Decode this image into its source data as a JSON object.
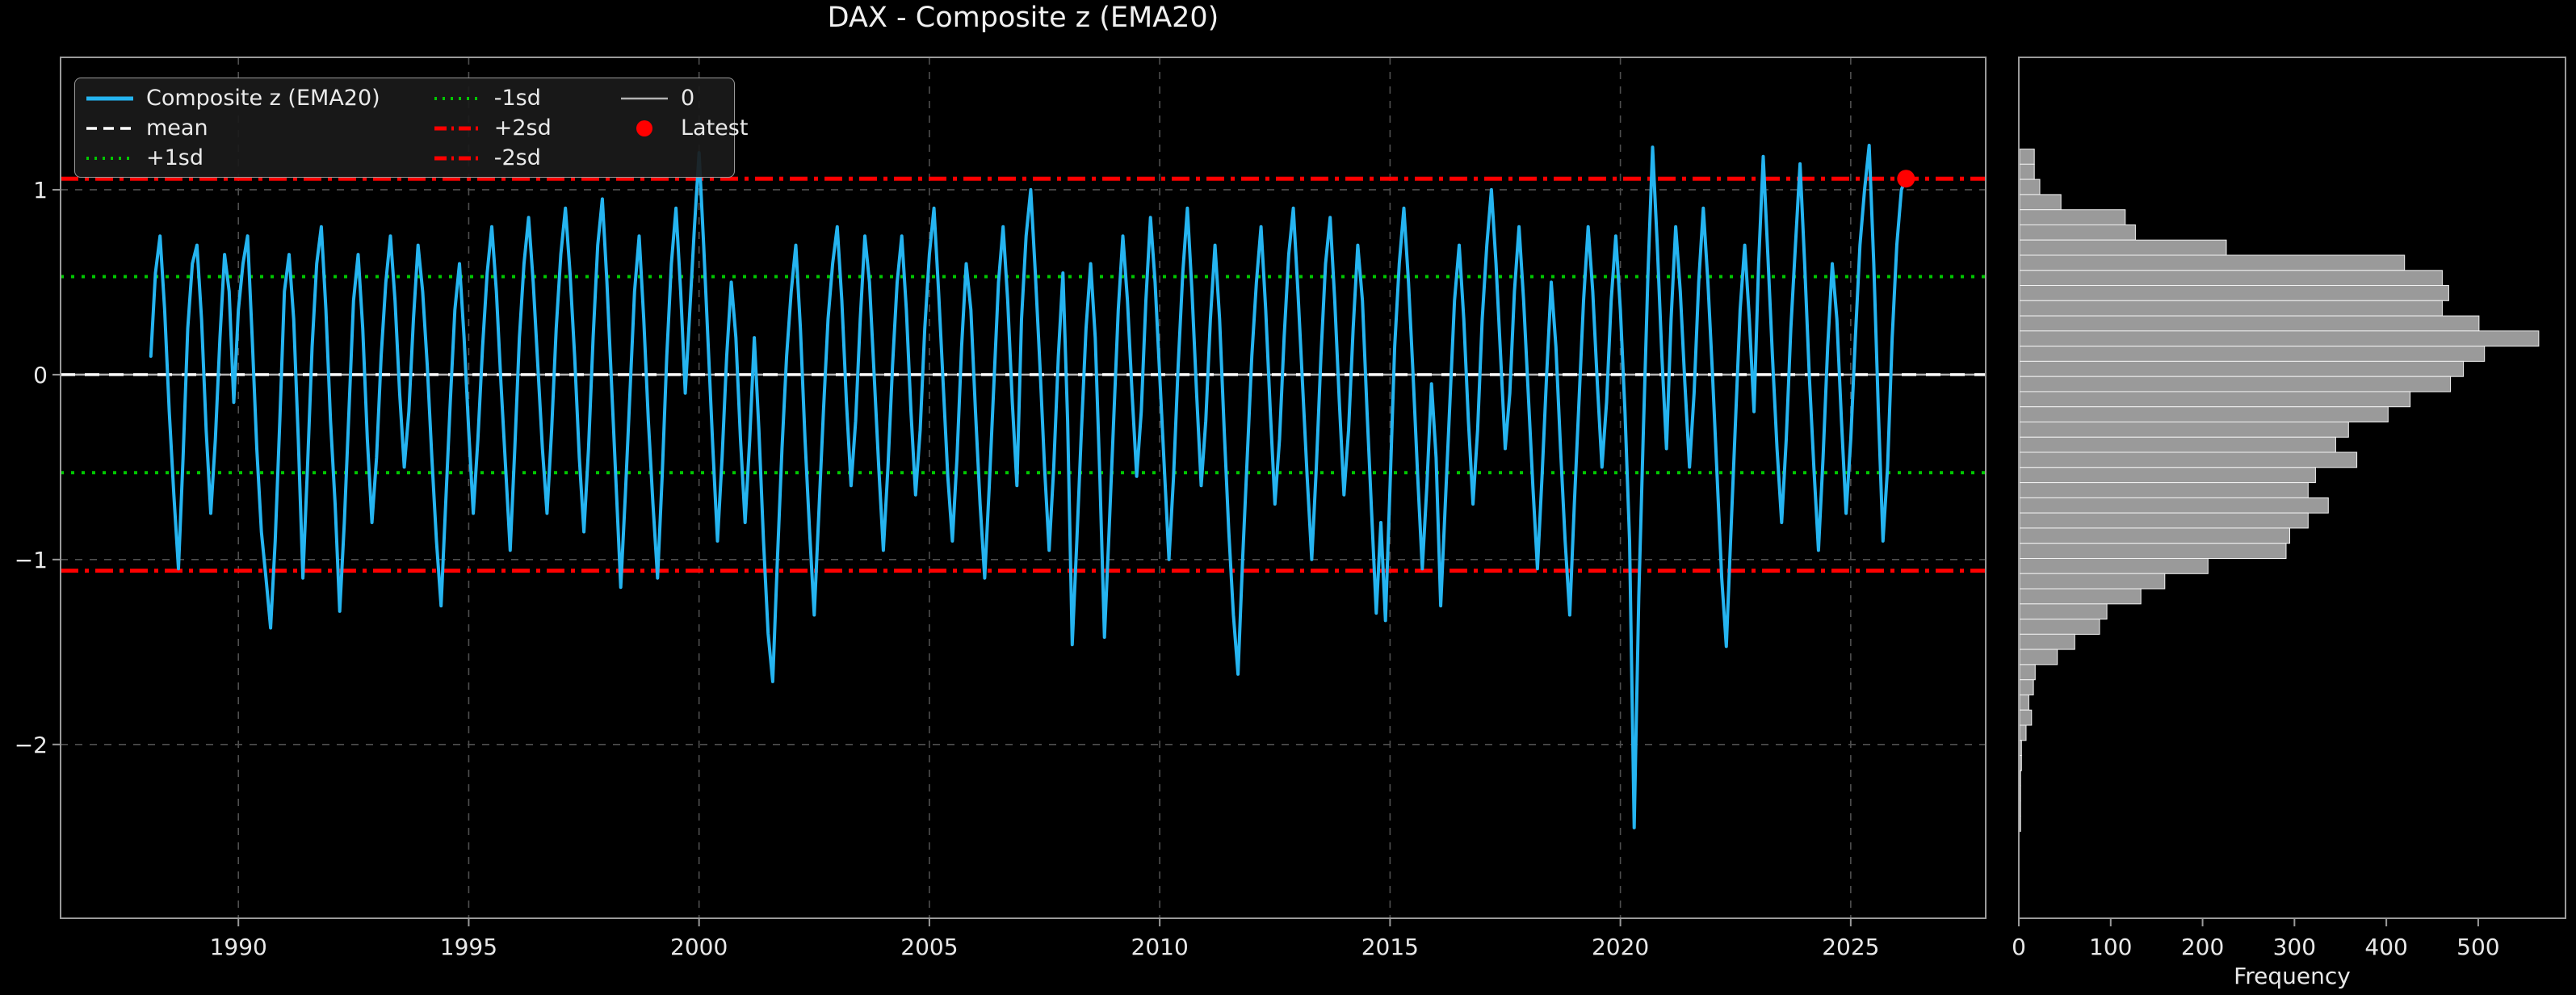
{
  "title": "DAX - Composite z (EMA20)",
  "colors": {
    "background": "#000000",
    "frame": "#9a9a9a",
    "grid": "#4f4f4f",
    "tick_label": "#e8e8e8",
    "series": "#25b4f0",
    "mean_line": "#ffffff",
    "sd1_line": "#00c800",
    "sd2_line": "#ff0000",
    "zero_line": "#b3b3b3",
    "latest_marker": "#ff0000",
    "hist_bar_fill": "#9a9a9a",
    "hist_bar_edge": "#f2f2f2",
    "legend_bg": "#1a1a1a"
  },
  "legend": {
    "columns": [
      [
        {
          "label": "Composite z (EMA20)",
          "color": "#25b4f0",
          "dash": "solid",
          "lw": 5
        },
        {
          "label": "mean",
          "color": "#ffffff",
          "dash": "dashed",
          "lw": 3.5
        },
        {
          "label": "+1sd",
          "color": "#00c800",
          "dash": "dotted",
          "lw": 4
        }
      ],
      [
        {
          "label": "-1sd",
          "color": "#00c800",
          "dash": "dotted",
          "lw": 4
        },
        {
          "label": "+2sd",
          "color": "#ff0000",
          "dash": "dashdot",
          "lw": 5
        },
        {
          "label": "-2sd",
          "color": "#ff0000",
          "dash": "dashdot",
          "lw": 5
        }
      ],
      [
        {
          "label": "0",
          "color": "#b3b3b3",
          "dash": "solid",
          "lw": 2.5
        },
        {
          "label": "Latest",
          "color": "#ff0000",
          "marker": "circle"
        }
      ]
    ]
  },
  "chart_data": [
    {
      "type": "line",
      "title": "DAX - Composite z (EMA20)",
      "name": "Composite z (EMA20)",
      "xlabel": "",
      "ylabel": "",
      "xlim": [
        1986.14,
        2027.93
      ],
      "ylim": [
        -2.94,
        1.716
      ],
      "x_ticks": [
        1990,
        1995,
        2000,
        2005,
        2010,
        2015,
        2020,
        2025
      ],
      "y_ticks": [
        1,
        0,
        -1,
        -2
      ],
      "y_tick_labels": [
        "1",
        "0",
        "−1",
        "−2"
      ],
      "grid": true,
      "legend_position": "upper left",
      "x_start": 1988.1,
      "x_step": 0.1,
      "values": [
        0.1,
        0.55,
        0.75,
        0.35,
        -0.2,
        -0.65,
        -1.05,
        -0.45,
        0.25,
        0.6,
        0.7,
        0.3,
        -0.3,
        -0.75,
        -0.35,
        0.2,
        0.65,
        0.45,
        -0.15,
        0.35,
        0.6,
        0.75,
        0.2,
        -0.4,
        -0.85,
        -1.1,
        -1.37,
        -0.9,
        -0.25,
        0.45,
        0.65,
        0.3,
        -0.35,
        -1.1,
        -0.5,
        0.15,
        0.6,
        0.8,
        0.35,
        -0.25,
        -0.7,
        -1.28,
        -0.8,
        -0.2,
        0.4,
        0.65,
        0.25,
        -0.35,
        -0.8,
        -0.45,
        0.1,
        0.5,
        0.75,
        0.4,
        -0.1,
        -0.5,
        -0.2,
        0.3,
        0.7,
        0.45,
        0.05,
        -0.45,
        -0.9,
        -1.25,
        -0.7,
        -0.15,
        0.35,
        0.6,
        0.2,
        -0.3,
        -0.75,
        -0.35,
        0.15,
        0.55,
        0.8,
        0.45,
        -0.05,
        -0.5,
        -0.95,
        -0.4,
        0.2,
        0.6,
        0.85,
        0.5,
        0.05,
        -0.4,
        -0.75,
        -0.3,
        0.25,
        0.65,
        0.9,
        0.55,
        0.1,
        -0.45,
        -0.85,
        -0.4,
        0.2,
        0.7,
        0.95,
        0.5,
        -0.05,
        -0.6,
        -1.15,
        -0.65,
        -0.1,
        0.45,
        0.75,
        0.3,
        -0.25,
        -0.7,
        -1.1,
        -0.55,
        0.1,
        0.6,
        0.9,
        0.45,
        -0.1,
        0.35,
        0.8,
        1.2,
        0.7,
        0.15,
        -0.4,
        -0.9,
        -0.45,
        0.1,
        0.5,
        0.2,
        -0.35,
        -0.8,
        -0.35,
        0.2,
        -0.3,
        -0.9,
        -1.4,
        -1.66,
        -1.0,
        -0.4,
        0.1,
        0.45,
        0.7,
        0.25,
        -0.35,
        -0.85,
        -1.3,
        -0.75,
        -0.2,
        0.3,
        0.6,
        0.8,
        0.4,
        -0.15,
        -0.6,
        -0.25,
        0.3,
        0.75,
        0.5,
        0.0,
        -0.5,
        -0.95,
        -0.5,
        0.05,
        0.5,
        0.75,
        0.35,
        -0.2,
        -0.65,
        -0.3,
        0.25,
        0.65,
        0.9,
        0.45,
        -0.05,
        -0.55,
        -0.9,
        -0.45,
        0.15,
        0.6,
        0.35,
        -0.2,
        -0.7,
        -1.1,
        -0.6,
        -0.05,
        0.5,
        0.8,
        0.4,
        -0.15,
        -0.6,
        0.3,
        0.75,
        1.0,
        0.55,
        0.05,
        -0.5,
        -0.95,
        -0.5,
        0.1,
        0.55,
        -0.25,
        -1.46,
        -0.9,
        -0.3,
        0.25,
        0.6,
        0.2,
        -0.55,
        -1.42,
        -0.85,
        -0.25,
        0.35,
        0.75,
        0.4,
        -0.1,
        -0.55,
        -0.2,
        0.4,
        0.85,
        0.5,
        0.0,
        -0.5,
        -1.0,
        -0.55,
        0.05,
        0.55,
        0.9,
        0.45,
        -0.1,
        -0.6,
        -0.25,
        0.3,
        0.7,
        0.3,
        -0.3,
        -0.85,
        -1.3,
        -1.62,
        -1.0,
        -0.45,
        0.1,
        0.5,
        0.8,
        0.35,
        -0.2,
        -0.7,
        -0.35,
        0.2,
        0.65,
        0.9,
        0.45,
        -0.05,
        -0.55,
        -1.0,
        -0.5,
        0.1,
        0.6,
        0.85,
        0.4,
        -0.15,
        -0.65,
        -0.3,
        0.25,
        0.7,
        0.4,
        -0.2,
        -0.75,
        -1.29,
        -0.8,
        -1.33,
        -0.6,
        0.15,
        0.6,
        0.9,
        0.5,
        0.0,
        -0.55,
        -1.05,
        -0.6,
        -0.05,
        -0.45,
        -1.25,
        -0.7,
        -0.15,
        0.4,
        0.7,
        0.3,
        -0.25,
        -0.7,
        -0.3,
        0.3,
        0.7,
        1.0,
        0.6,
        0.1,
        -0.4,
        -0.1,
        0.45,
        0.8,
        0.4,
        -0.1,
        -0.6,
        -1.05,
        -0.55,
        0.0,
        0.5,
        0.15,
        -0.4,
        -0.9,
        -1.3,
        -0.7,
        -0.15,
        0.4,
        0.8,
        0.45,
        -0.05,
        -0.5,
        -0.15,
        0.4,
        0.75,
        0.35,
        -0.2,
        -0.9,
        -2.45,
        -1.2,
        -0.3,
        0.55,
        1.23,
        0.7,
        0.1,
        -0.4,
        0.3,
        0.8,
        0.45,
        -0.05,
        -0.5,
        -0.1,
        0.5,
        0.9,
        0.5,
        0.0,
        -0.55,
        -1.1,
        -1.47,
        -0.85,
        -0.25,
        0.35,
        0.7,
        0.3,
        -0.2,
        0.6,
        1.18,
        0.65,
        0.1,
        -0.4,
        -0.8,
        -0.35,
        0.25,
        0.7,
        1.14,
        0.6,
        0.0,
        -0.5,
        -0.95,
        -0.45,
        0.15,
        0.6,
        0.3,
        -0.25,
        -0.75,
        -0.35,
        0.2,
        0.7,
        1.0,
        1.24,
        0.6,
        -0.2,
        -0.9,
        -0.5,
        0.2,
        0.7,
        1.0,
        1.06
      ],
      "ref_lines": [
        {
          "name": "mean",
          "value": 0.0
        },
        {
          "name": "+1sd",
          "value": 0.53
        },
        {
          "name": "-1sd",
          "value": -0.53
        },
        {
          "name": "+2sd",
          "value": 1.06
        },
        {
          "name": "-2sd",
          "value": -1.06
        },
        {
          "name": "0",
          "value": 0.0
        }
      ],
      "latest": {
        "x": 2026.2,
        "y": 1.06
      }
    },
    {
      "type": "bar",
      "orientation": "horizontal",
      "title": "",
      "xlabel": "Frequency",
      "ylabel": "",
      "xlim": [
        0,
        595
      ],
      "x_ticks": [
        0,
        100,
        200,
        300,
        400,
        500
      ],
      "grid": false,
      "bins_top": 1.22,
      "bin_height": 0.082,
      "frequencies": [
        16,
        16,
        22,
        45,
        115,
        126,
        225,
        419,
        460,
        467,
        460,
        500,
        565,
        506,
        483,
        469,
        425,
        401,
        358,
        344,
        367,
        322,
        314,
        336,
        314,
        294,
        290,
        205,
        158,
        132,
        95,
        87,
        60,
        41,
        17,
        15,
        10,
        13,
        7,
        2,
        2,
        1,
        1,
        1,
        1
      ]
    }
  ]
}
